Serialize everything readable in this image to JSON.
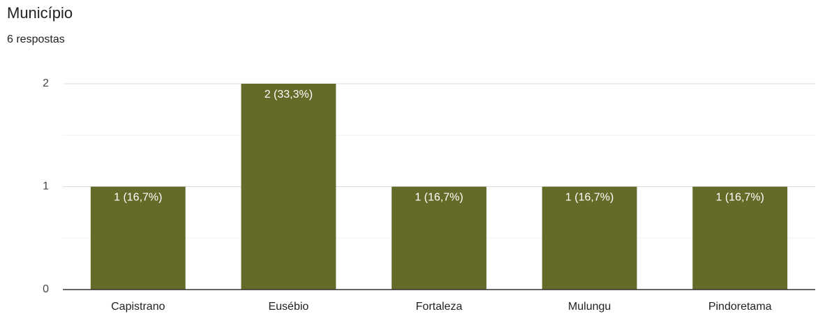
{
  "chart_data": {
    "type": "bar",
    "title": "Município",
    "subtitle": "6 respostas",
    "categories": [
      "Capistrano",
      "Eusébio",
      "Fortaleza",
      "Mulungu",
      "Pindoretama"
    ],
    "values": [
      1,
      2,
      1,
      1,
      1
    ],
    "value_labels": [
      "1 (16,7%)",
      "2 (33,3%)",
      "1 (16,7%)",
      "1 (16,7%)",
      "1 (16,7%)"
    ],
    "color": "#646b28",
    "ylim": [
      0,
      2
    ],
    "yticks": [
      0,
      1,
      2
    ],
    "minor_gridlines": [
      0.5,
      1.5
    ],
    "grid": true
  }
}
